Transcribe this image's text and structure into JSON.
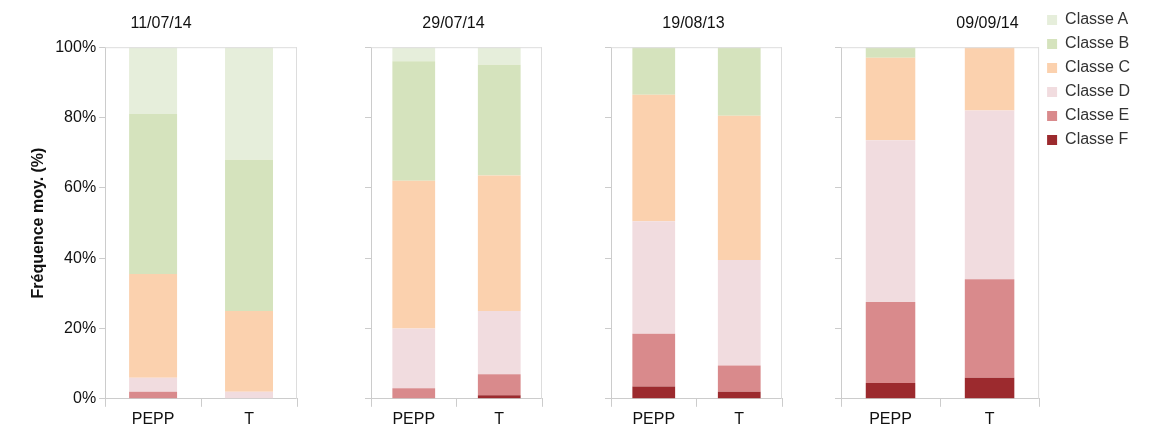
{
  "chart_data": [
    {
      "type": "bar",
      "title": "11/07/14",
      "ylabel": "Fréquence moy. (%)",
      "categories": [
        "PEPP",
        "T"
      ],
      "stacked": true,
      "legend": false,
      "grid": false,
      "ylim": [
        0,
        100
      ],
      "yticks": [
        {
          "value": 0,
          "label": "0%"
        },
        {
          "value": 20,
          "label": "20%"
        },
        {
          "value": 40,
          "label": "40%"
        },
        {
          "value": 60,
          "label": "60%"
        },
        {
          "value": 80,
          "label": "80%"
        },
        {
          "value": 100,
          "label": "100%"
        }
      ],
      "series": [
        {
          "color": "#9c2a2e",
          "values": [
            0,
            0
          ]
        },
        {
          "color": "#d98a8c",
          "values": [
            2,
            0
          ]
        },
        {
          "color": "#f1dcdf",
          "values": [
            4,
            2
          ]
        },
        {
          "color": "#fbd1ae",
          "values": [
            29.5,
            23
          ]
        },
        {
          "color": "#d5e3bd",
          "values": [
            45.5,
            43
          ]
        },
        {
          "color": "#e6eedb",
          "values": [
            19,
            32
          ]
        }
      ]
    },
    {
      "type": "bar",
      "title": "29/07/14",
      "categories": [
        "PEPP",
        "T"
      ],
      "stacked": true,
      "legend": false,
      "grid": false,
      "tick_labels": "x",
      "ylim": [
        0,
        100
      ],
      "yticks": [
        {
          "value": 0,
          "label": null
        },
        {
          "value": 20,
          "label": null
        },
        {
          "value": 40,
          "label": null
        },
        {
          "value": 60,
          "label": null
        },
        {
          "value": 80,
          "label": null
        },
        {
          "value": 100,
          "label": null
        }
      ],
      "series": [
        {
          "color": "#9c2a2e",
          "values": [
            0,
            1
          ]
        },
        {
          "color": "#d98a8c",
          "values": [
            3,
            6
          ]
        },
        {
          "color": "#f1dcdf",
          "values": [
            17,
            18
          ]
        },
        {
          "color": "#fbd1ae",
          "values": [
            42,
            38.5
          ]
        },
        {
          "color": "#d5e3bd",
          "values": [
            34,
            31.5
          ]
        },
        {
          "color": "#e6eedb",
          "values": [
            4,
            5
          ]
        }
      ]
    },
    {
      "type": "bar",
      "title": "19/08/13",
      "categories": [
        "PEPP",
        "T"
      ],
      "stacked": true,
      "legend": false,
      "grid": false,
      "tick_labels": "x",
      "ylim": [
        0,
        100
      ],
      "yticks": [
        {
          "value": 0,
          "label": null
        },
        {
          "value": 20,
          "label": null
        },
        {
          "value": 40,
          "label": null
        },
        {
          "value": 60,
          "label": null
        },
        {
          "value": 80,
          "label": null
        },
        {
          "value": 100,
          "label": null
        }
      ],
      "series": [
        {
          "color": "#9c2a2e",
          "values": [
            3.5,
            2
          ]
        },
        {
          "color": "#d98a8c",
          "values": [
            15,
            7.5
          ]
        },
        {
          "color": "#f1dcdf",
          "values": [
            32,
            30
          ]
        },
        {
          "color": "#fbd1ae",
          "values": [
            36,
            41
          ]
        },
        {
          "color": "#d5e3bd",
          "values": [
            13.5,
            19.5
          ]
        },
        {
          "color": "#e6eedb",
          "values": [
            0,
            0
          ]
        }
      ]
    },
    {
      "type": "bar",
      "title": "09/09/14",
      "categories": [
        "PEPP",
        "T"
      ],
      "stacked": true,
      "legend": "right",
      "grid": false,
      "tick_labels": "x",
      "ylim": [
        0,
        100
      ],
      "yticks": [
        {
          "value": 0,
          "label": null
        },
        {
          "value": 20,
          "label": null
        },
        {
          "value": 40,
          "label": null
        },
        {
          "value": 60,
          "label": null
        },
        {
          "value": 80,
          "label": null
        },
        {
          "value": 100,
          "label": null
        }
      ],
      "series": [
        {
          "name": "Classe F",
          "color": "#9c2a2e",
          "values": [
            4.5,
            6
          ]
        },
        {
          "name": "Classe E",
          "color": "#d98a8c",
          "values": [
            23,
            28
          ]
        },
        {
          "name": "Classe D",
          "color": "#f1dcdf",
          "values": [
            46,
            48
          ]
        },
        {
          "name": "Classe C",
          "color": "#fbd1ae",
          "values": [
            23.5,
            18
          ]
        },
        {
          "name": "Classe B",
          "color": "#d5e3bd",
          "values": [
            3,
            0
          ]
        },
        {
          "name": "Classe A",
          "color": "#e6eedb",
          "values": [
            0,
            0
          ]
        }
      ]
    }
  ]
}
